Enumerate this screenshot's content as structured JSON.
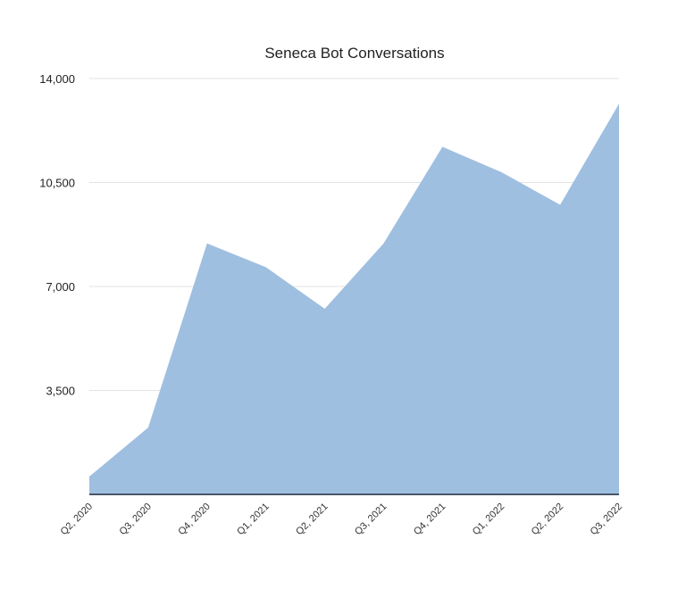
{
  "chart_data": {
    "type": "area",
    "title": "Seneca Bot Conversations",
    "xlabel": "",
    "ylabel": "",
    "categories": [
      "Q2, 2020",
      "Q3, 2020",
      "Q4, 2020",
      "Q1, 2021",
      "Q2, 2021",
      "Q3, 2021",
      "Q4, 2021",
      "Q1, 2022",
      "Q2, 2022",
      "Q3, 2022"
    ],
    "values": [
      600,
      2250,
      8450,
      7650,
      6250,
      8450,
      11700,
      10850,
      9750,
      13150
    ],
    "ylim": [
      0,
      14000
    ],
    "yticks": [
      3500,
      7000,
      10500,
      14000
    ],
    "ytick_labels": [
      "3,500",
      "7,000",
      "10,500",
      "14,000"
    ],
    "grid": true,
    "legend": "none",
    "colors": {
      "fill": "#9fbfe0",
      "grid": "#e3e3e3",
      "baseline": "#4a5568"
    }
  }
}
